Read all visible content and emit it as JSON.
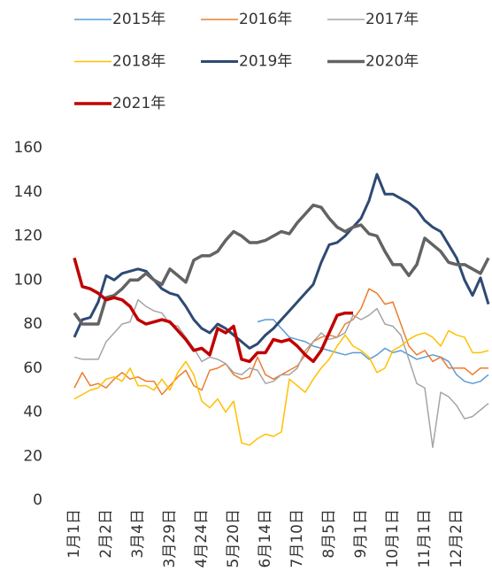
{
  "chart_data": {
    "type": "line",
    "categories": [
      "1月1日",
      null,
      null,
      null,
      "2月2日",
      null,
      null,
      null,
      "3月4日",
      null,
      null,
      null,
      "3月29日",
      null,
      null,
      null,
      "4月24日",
      null,
      null,
      null,
      "5月20日",
      null,
      null,
      null,
      "6月14日",
      null,
      null,
      null,
      "7月10日",
      null,
      null,
      null,
      "8月5日",
      null,
      null,
      null,
      "9月1日",
      null,
      null,
      null,
      "10月1日",
      null,
      null,
      null,
      "11月1日",
      null,
      null,
      null,
      "12月2日",
      null,
      null,
      null,
      null
    ],
    "ylim": [
      0,
      160
    ],
    "yticks": [
      0,
      20,
      40,
      60,
      80,
      100,
      120,
      140,
      160
    ],
    "grid": false,
    "series": [
      {
        "name": "2015年",
        "color": "#5b9bd5",
        "line_width": 1.5,
        "values": [
          null,
          null,
          null,
          null,
          null,
          null,
          null,
          null,
          null,
          null,
          null,
          null,
          null,
          null,
          null,
          null,
          null,
          null,
          null,
          null,
          null,
          null,
          null,
          81,
          82,
          82,
          78,
          74,
          73,
          72,
          70,
          69,
          68,
          67,
          66,
          67,
          67,
          64,
          66,
          69,
          67,
          68,
          66,
          64,
          65,
          66,
          65,
          63,
          57,
          54,
          53,
          54,
          57
        ]
      },
      {
        "name": "2016年",
        "color": "#ed7d31",
        "line_width": 1.5,
        "values": [
          51,
          58,
          52,
          53,
          51,
          55,
          58,
          55,
          56,
          54,
          54,
          48,
          52,
          56,
          59,
          52,
          50,
          59,
          60,
          62,
          57,
          55,
          56,
          65,
          57,
          55,
          57,
          59,
          61,
          66,
          72,
          74,
          75,
          74,
          80,
          82,
          87,
          96,
          94,
          89,
          90,
          80,
          70,
          66,
          68,
          63,
          65,
          60,
          60,
          60,
          57,
          60,
          60
        ]
      },
      {
        "name": "2017年",
        "color": "#a5a5a5",
        "line_width": 1.5,
        "values": [
          65,
          64,
          64,
          64,
          72,
          76,
          80,
          81,
          91,
          88,
          86,
          85,
          80,
          79,
          74,
          69,
          63,
          65,
          64,
          62,
          58,
          57,
          60,
          59,
          53,
          54,
          57,
          57,
          60,
          68,
          72,
          76,
          73,
          74,
          76,
          84,
          82,
          84,
          87,
          80,
          79,
          75,
          64,
          53,
          51,
          24,
          49,
          47,
          43,
          37,
          38,
          41,
          44
        ]
      },
      {
        "name": "2018年",
        "color": "#ffc000",
        "line_width": 1.5,
        "values": [
          46,
          48,
          50,
          51,
          55,
          56,
          54,
          60,
          52,
          52,
          50,
          55,
          50,
          58,
          63,
          57,
          45,
          42,
          46,
          40,
          45,
          26,
          25,
          28,
          30,
          29,
          31,
          55,
          52,
          49,
          55,
          60,
          64,
          70,
          75,
          70,
          68,
          65,
          58,
          60,
          68,
          70,
          73,
          75,
          76,
          74,
          70,
          77,
          75,
          74,
          67,
          67,
          68
        ]
      },
      {
        "name": "2019年",
        "color": "#2e4a73",
        "line_width": 3,
        "values": [
          74,
          82,
          83,
          90,
          102,
          100,
          103,
          104,
          105,
          104,
          100,
          96,
          94,
          93,
          88,
          82,
          78,
          76,
          80,
          78,
          75,
          72,
          69,
          71,
          75,
          78,
          82,
          86,
          90,
          94,
          98,
          108,
          116,
          117,
          120,
          124,
          128,
          136,
          148,
          139,
          139,
          137,
          135,
          132,
          127,
          124,
          122,
          116,
          110,
          100,
          93,
          101,
          89
        ]
      },
      {
        "name": "2020年",
        "color": "#636363",
        "line_width": 3.5,
        "values": [
          85,
          80,
          80,
          80,
          92,
          93,
          96,
          100,
          100,
          103,
          100,
          98,
          105,
          102,
          99,
          109,
          111,
          111,
          113,
          118,
          122,
          120,
          117,
          117,
          118,
          120,
          122,
          121,
          126,
          130,
          134,
          133,
          128,
          124,
          122,
          124,
          125,
          121,
          120,
          113,
          107,
          107,
          102,
          107,
          119,
          116,
          113,
          108,
          107,
          107,
          105,
          103,
          110
        ]
      },
      {
        "name": "2021年",
        "color": "#c00000",
        "line_width": 3.5,
        "values": [
          110,
          97,
          96,
          94,
          91,
          92,
          91,
          88,
          82,
          80,
          81,
          82,
          81,
          77,
          73,
          68,
          69,
          66,
          78,
          76,
          79,
          64,
          63,
          67,
          67,
          73,
          72,
          73,
          70,
          66,
          63,
          68,
          76,
          84,
          85,
          85,
          null,
          null,
          null,
          null,
          null,
          null,
          null,
          null,
          null,
          null,
          null,
          null,
          null,
          null,
          null,
          null,
          null
        ]
      }
    ]
  }
}
